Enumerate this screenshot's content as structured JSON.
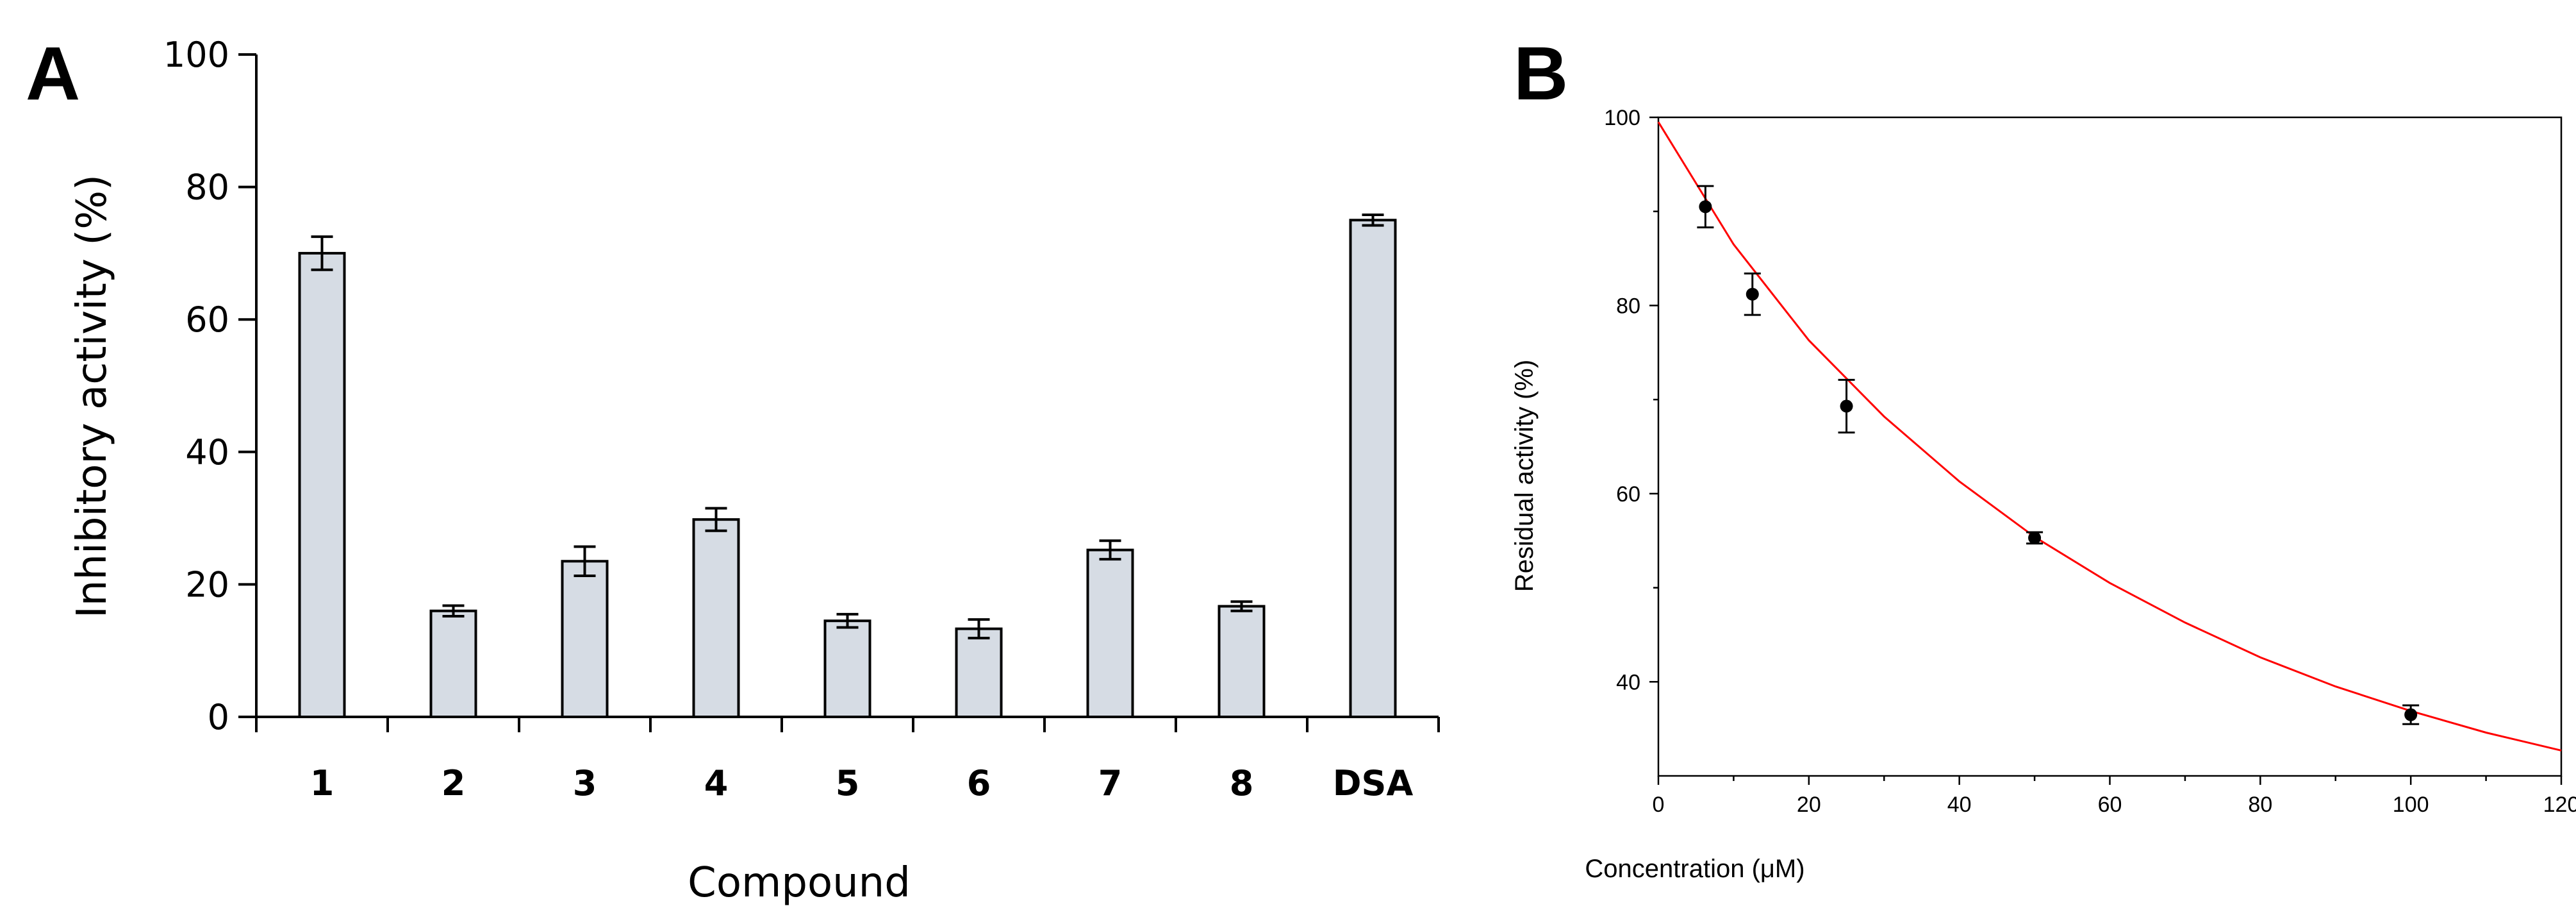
{
  "chart_data": [
    {
      "panel": "A",
      "type": "bar",
      "xlabel": "Compound",
      "ylabel": "Inhibitory activity (%)",
      "ylim": [
        0,
        100
      ],
      "yticks": [
        0,
        20,
        40,
        60,
        80,
        100
      ],
      "categories": [
        "1",
        "2",
        "3",
        "4",
        "5",
        "6",
        "7",
        "8",
        "DSA"
      ],
      "values": [
        70,
        16,
        23.5,
        29.8,
        14.5,
        13.3,
        25.2,
        16.7,
        75
      ],
      "errors": [
        2.5,
        0.8,
        2.2,
        1.7,
        1.0,
        1.4,
        1.4,
        0.7,
        0.8
      ],
      "bar_color": "#d6dce4"
    },
    {
      "panel": "B",
      "type": "scatter",
      "xlabel": "Concentration (μM)",
      "ylabel": "Residual activity (%)",
      "xlim": [
        0,
        120
      ],
      "ylim": [
        30,
        100
      ],
      "xticks": [
        0,
        20,
        40,
        60,
        80,
        100,
        120
      ],
      "yticks": [
        40,
        60,
        80,
        100
      ],
      "points": {
        "x": [
          6.25,
          12.5,
          25,
          50,
          100
        ],
        "y": [
          90.5,
          81.2,
          69.3,
          55.3,
          36.5
        ],
        "errors": [
          2.2,
          2.2,
          2.8,
          0.6,
          1.0
        ]
      },
      "fit_curve": {
        "color": "#ff0000",
        "x": [
          0,
          10,
          20,
          30,
          40,
          50,
          60,
          70,
          80,
          90,
          100,
          110,
          120
        ],
        "y": [
          99.5,
          86.5,
          76.3,
          68.2,
          61.3,
          55.4,
          50.5,
          46.3,
          42.6,
          39.5,
          36.9,
          34.6,
          32.7
        ]
      }
    }
  ]
}
